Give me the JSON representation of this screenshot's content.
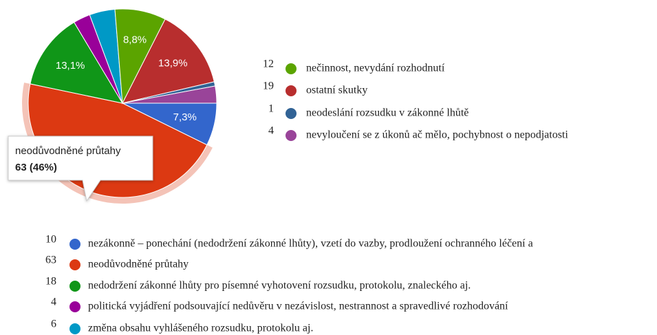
{
  "chart_data": {
    "type": "pie",
    "categories": [
      "nezákonně – ponechání (nedodržení zákonné lhůty), vzetí do vazby, prodloužení ochranného léčení a",
      "neodůvodněné průtahy",
      "nedodržení zákonné lhůty pro písemné vyhotovení rozsudku, protokolu, znaleckého aj.",
      "politická vyjádření podsouvající nedůvěru v nezávislost, nestrannost a spravedlivé rozhodování",
      "změna obsahu vyhlášeného rozsudku, protokolu aj.",
      "nečinnost, nevydání rozhodnutí",
      "ostatní skutky",
      "neodeslání rozsudku v zákonné lhůtě",
      "nevyloučení se z úkonů ač mělo, pochybnost o nepodjatosti"
    ],
    "values": [
      10,
      63,
      18,
      4,
      6,
      12,
      19,
      1,
      4
    ],
    "value_labels": [
      "7,3%",
      null,
      "13,1%",
      null,
      null,
      "8,8%",
      "13,9%",
      null,
      null
    ],
    "colors": [
      "#3366cc",
      "#dc3912",
      "#109618",
      "#990099",
      "#0099c6",
      "#5ba400",
      "#b82e2e",
      "#316395",
      "#994499"
    ],
    "highlight": 1,
    "tooltip": {
      "text": "63 (46%)"
    }
  }
}
